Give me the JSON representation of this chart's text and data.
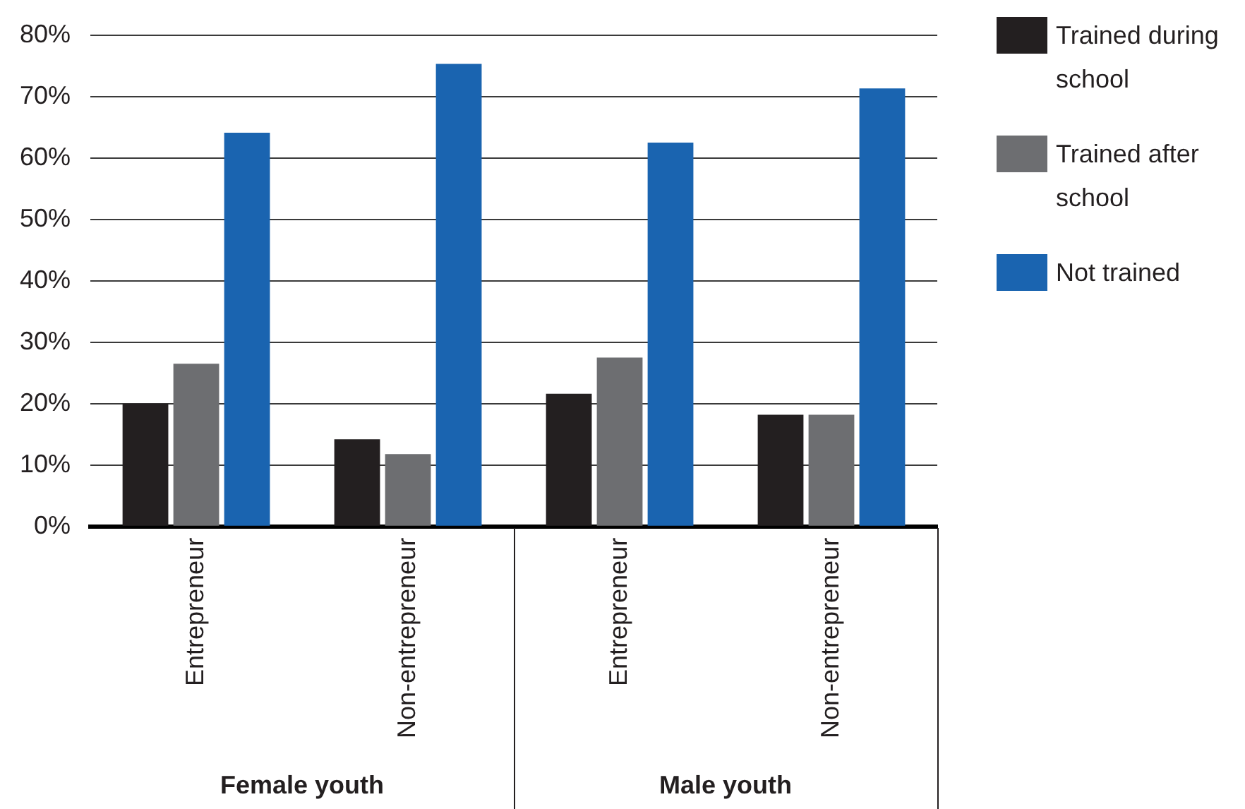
{
  "chart_data": {
    "type": "bar",
    "categories": [
      "Entrepreneur",
      "Non-entrepreneur",
      "Entrepreneur",
      "Non-entrepreneur"
    ],
    "series": [
      {
        "name": "Trained during school",
        "color": "#231f20",
        "values": [
          20,
          14.2,
          21.6,
          18.2
        ]
      },
      {
        "name": "Trained after school",
        "color": "#6d6e71",
        "values": [
          26.5,
          11.8,
          27.5,
          18.2
        ]
      },
      {
        "name": "Not trained",
        "color": "#1a64b0",
        "values": [
          64.1,
          75.3,
          62.5,
          71.3
        ]
      }
    ],
    "ylim": [
      0,
      80
    ],
    "yticks": [
      {
        "value": 0,
        "label": "0%"
      },
      {
        "value": 10,
        "label": "10%"
      },
      {
        "value": 20,
        "label": "20%"
      },
      {
        "value": 30,
        "label": "30%"
      },
      {
        "value": 40,
        "label": "40%"
      },
      {
        "value": 50,
        "label": "50%"
      },
      {
        "value": 60,
        "label": "60%"
      },
      {
        "value": 70,
        "label": "70%"
      },
      {
        "value": 80,
        "label": "80%"
      }
    ],
    "grid": "y",
    "legend": "right",
    "annotations": [
      "Female youth",
      "Male youth"
    ]
  }
}
